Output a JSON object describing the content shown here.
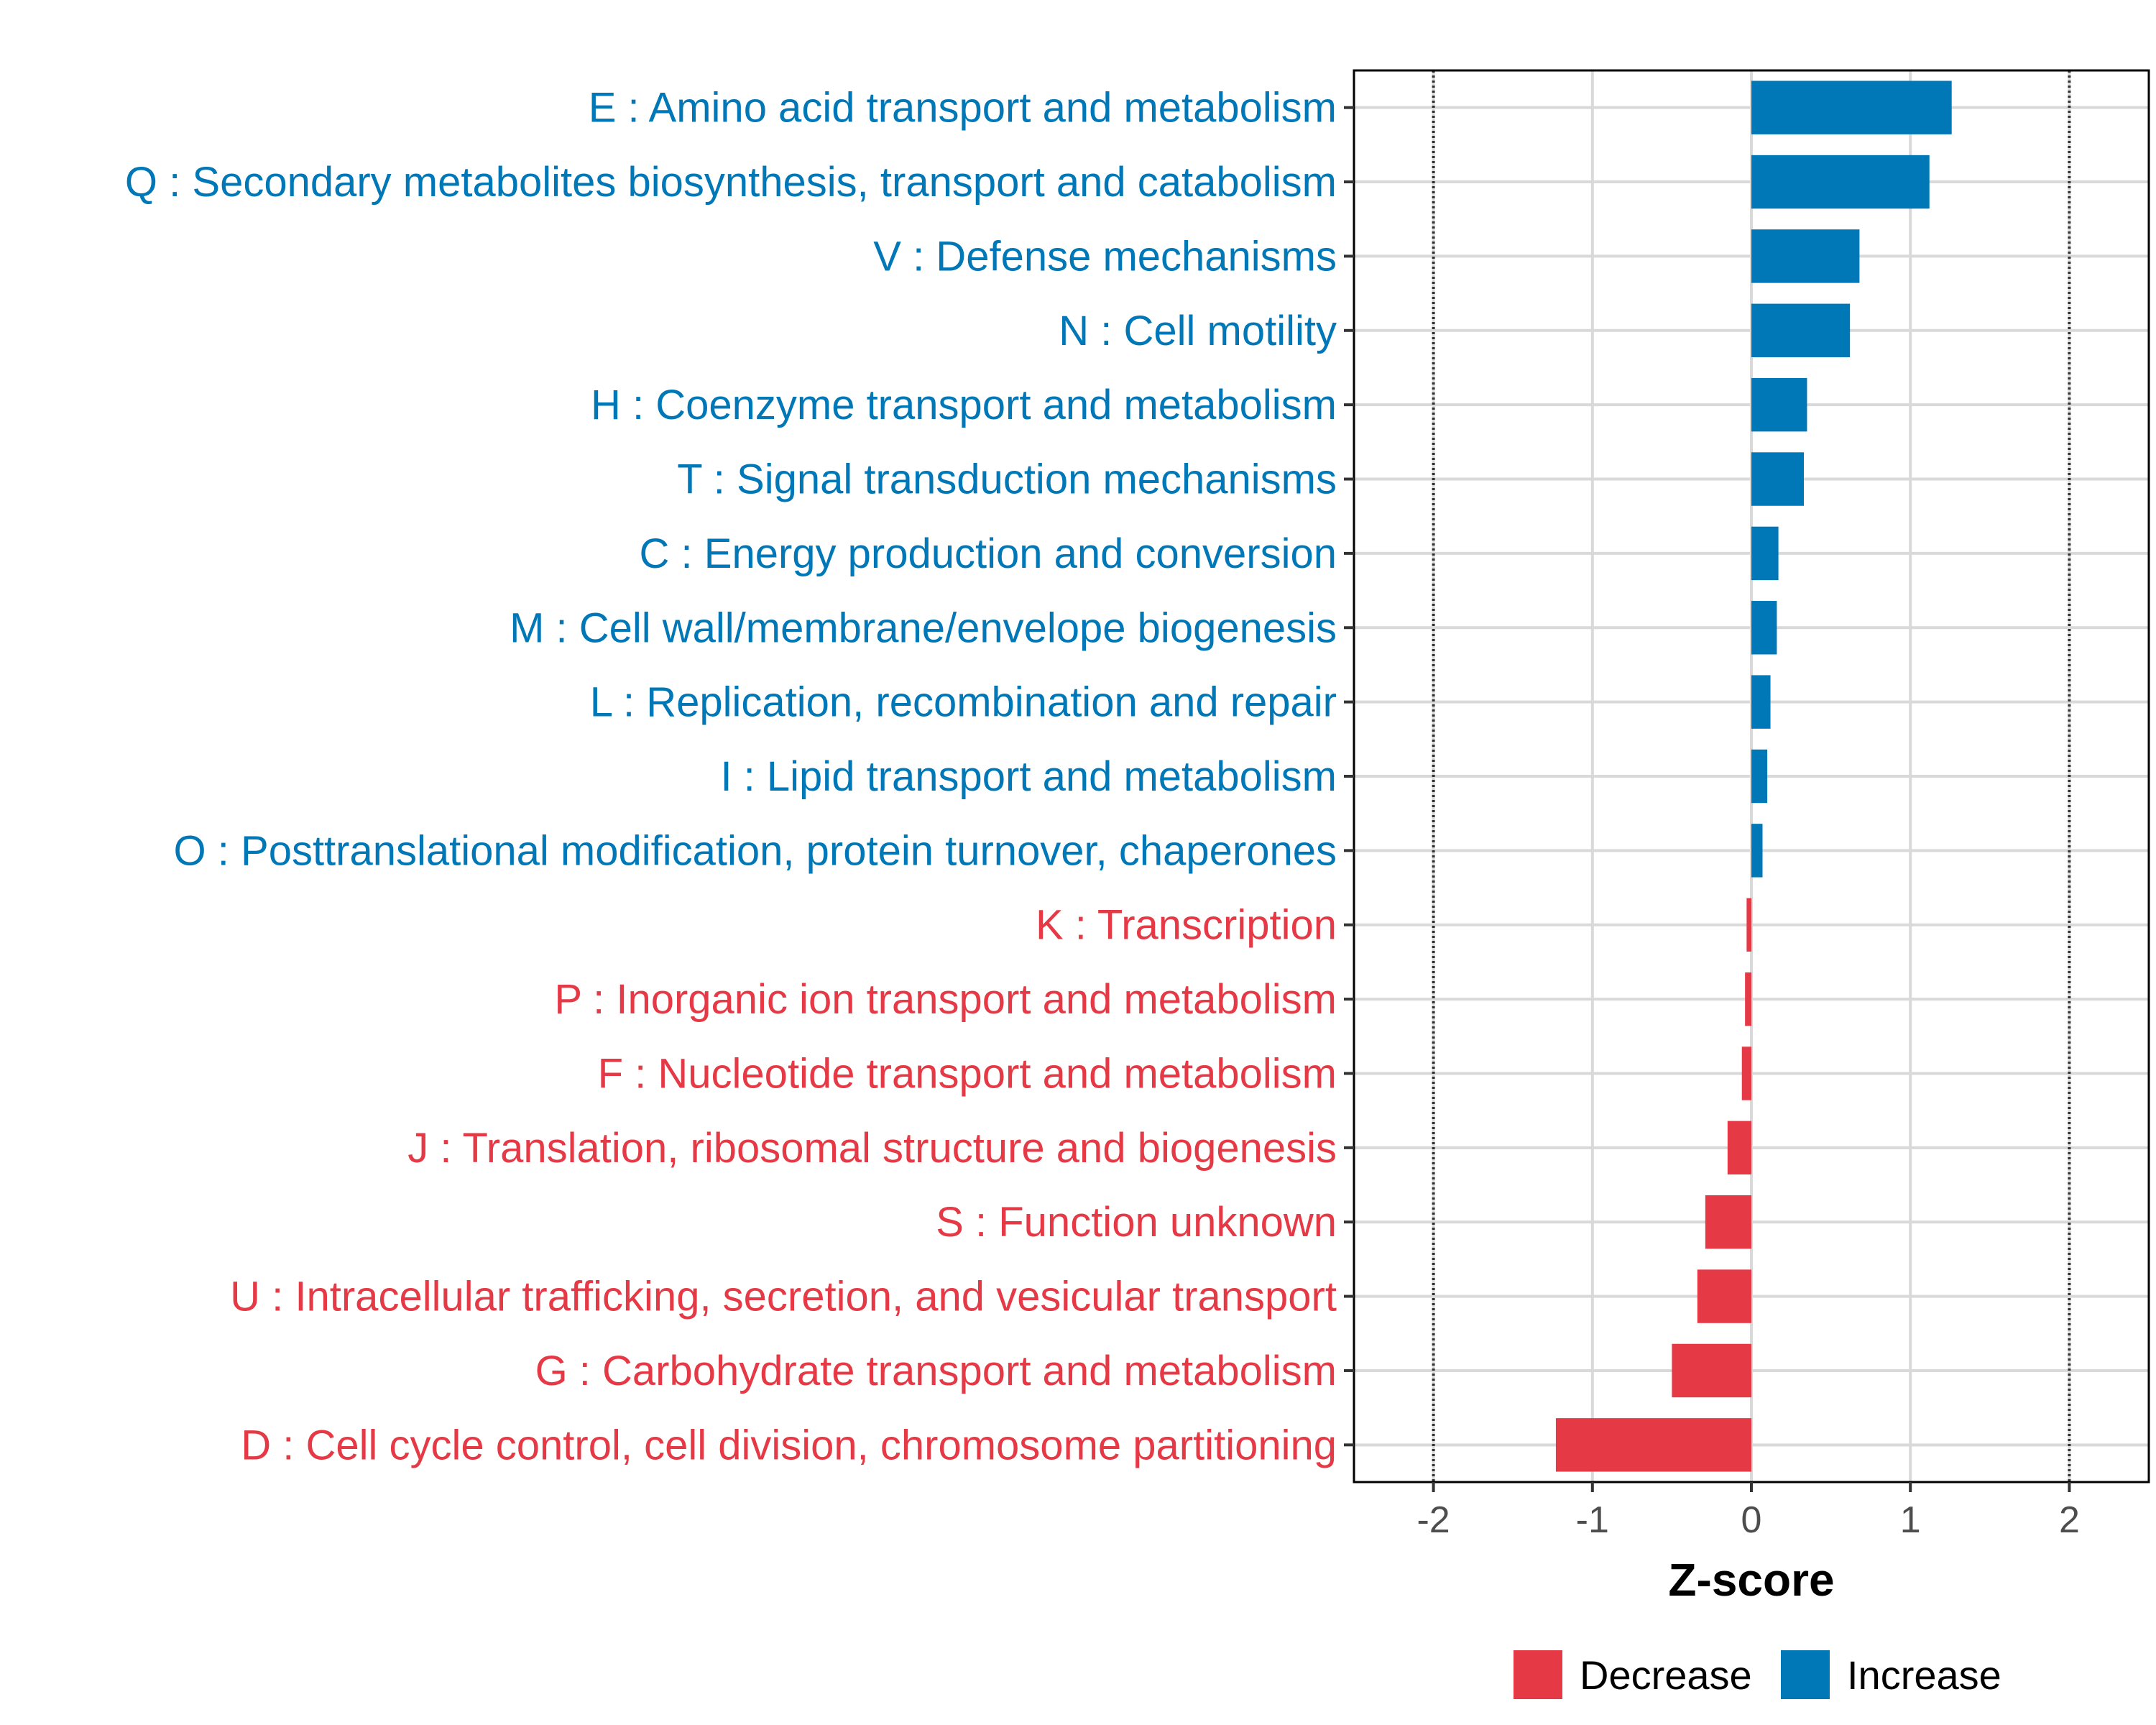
{
  "chart_data": {
    "type": "bar",
    "orientation": "horizontal",
    "xlabel": "Z-score",
    "xlim": [
      -2.5,
      2.5
    ],
    "xticks": [
      -2,
      -1,
      0,
      1,
      2
    ],
    "xtick_labels": [
      "-2",
      "-1",
      "0",
      "1",
      "2"
    ],
    "reference_lines": [
      -2,
      2
    ],
    "grid": true,
    "legend_placement": "bottom",
    "colors": {
      "Decrease": "#e63946",
      "Increase": "#0077b6"
    },
    "legend": [
      "Decrease",
      "Increase"
    ],
    "categories": [
      "E : Amino acid transport and metabolism",
      "Q : Secondary metabolites biosynthesis, transport and catabolism",
      "V : Defense mechanisms",
      "N : Cell motility",
      "H : Coenzyme transport and metabolism",
      "T : Signal transduction mechanisms",
      "C : Energy production and conversion",
      "M : Cell wall/membrane/envelope biogenesis",
      "L : Replication, recombination and repair",
      "I : Lipid transport and metabolism",
      "O : Posttranslational modification, protein turnover, chaperones",
      "K : Transcription",
      "P : Inorganic ion transport and metabolism",
      "F : Nucleotide transport and metabolism",
      "J : Translation, ribosomal structure and biogenesis",
      "S : Function unknown",
      "U : Intracellular trafficking, secretion, and vesicular transport",
      "G : Carbohydrate transport and metabolism",
      "D : Cell cycle control, cell division, chromosome partitioning"
    ],
    "values": [
      1.26,
      1.12,
      0.68,
      0.62,
      0.35,
      0.33,
      0.17,
      0.16,
      0.12,
      0.1,
      0.07,
      -0.03,
      -0.04,
      -0.06,
      -0.15,
      -0.29,
      -0.34,
      -0.5,
      -1.23
    ],
    "groups": [
      "Increase",
      "Increase",
      "Increase",
      "Increase",
      "Increase",
      "Increase",
      "Increase",
      "Increase",
      "Increase",
      "Increase",
      "Increase",
      "Decrease",
      "Decrease",
      "Decrease",
      "Decrease",
      "Decrease",
      "Decrease",
      "Decrease",
      "Decrease"
    ]
  }
}
